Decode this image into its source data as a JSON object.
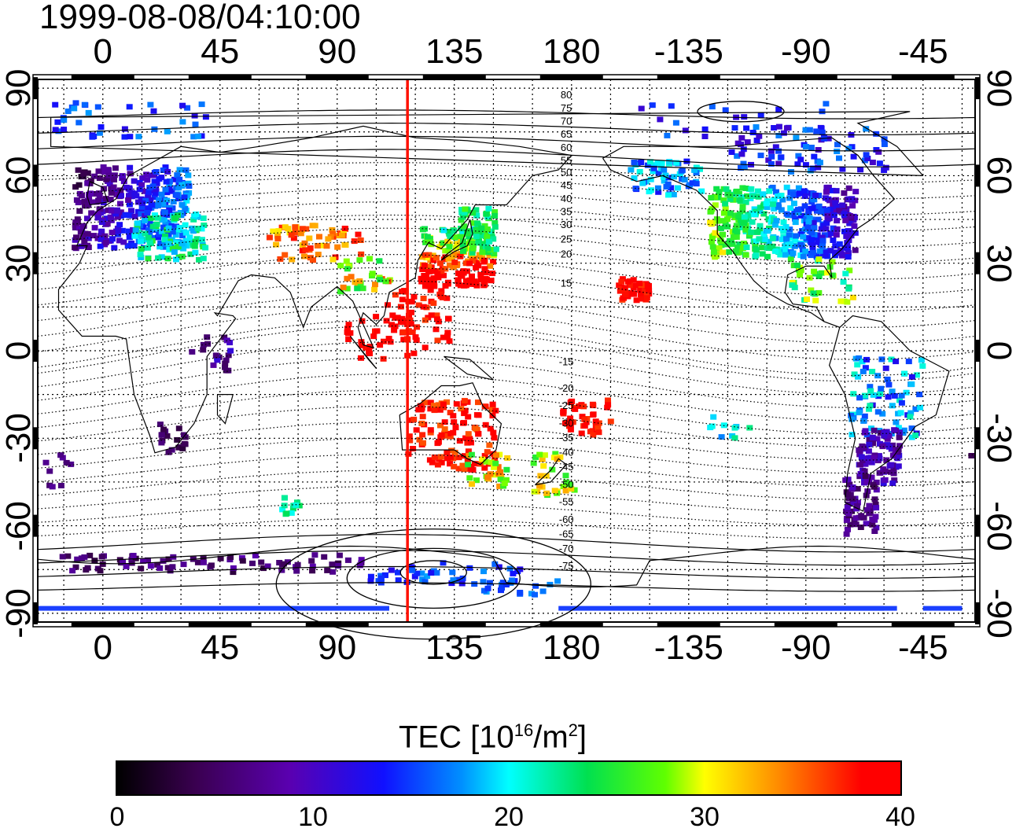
{
  "timestamp": "1999-08-08/04:10:00",
  "axes": {
    "lon_labels": [
      "0",
      "45",
      "90",
      "135",
      "180",
      "-135",
      "-90",
      "-45"
    ],
    "lat_labels": [
      "90",
      "60",
      "30",
      "0",
      "-30",
      "-60",
      "-90"
    ]
  },
  "colorbar": {
    "title_main": "TEC  [10",
    "title_exp1": "16",
    "title_mid": "/m",
    "title_exp2": "2",
    "title_end": "]",
    "ticks": [
      "0",
      "10",
      "20",
      "30",
      "40"
    ],
    "range": [
      0,
      40
    ],
    "colors": [
      "#000000",
      "#5a00b0",
      "#1010ff",
      "#00ffff",
      "#00e050",
      "#ffff00",
      "#ff9000",
      "#ff0000"
    ]
  },
  "contour_labels": [
    "80",
    "75",
    "70",
    "65",
    "60",
    "55",
    "50",
    "45",
    "40",
    "35",
    "30",
    "25",
    "20",
    "15",
    "-15",
    "-20",
    "-25",
    "-30",
    "-35",
    "-40",
    "-45",
    "-50",
    "-55",
    "-60",
    "-65",
    "-70",
    "-75"
  ],
  "subsolar_meridian_lon": 117,
  "map": {
    "lon_range": [
      -25,
      335
    ],
    "lat_range": [
      -93,
      93
    ],
    "grid_step": 15
  }
}
